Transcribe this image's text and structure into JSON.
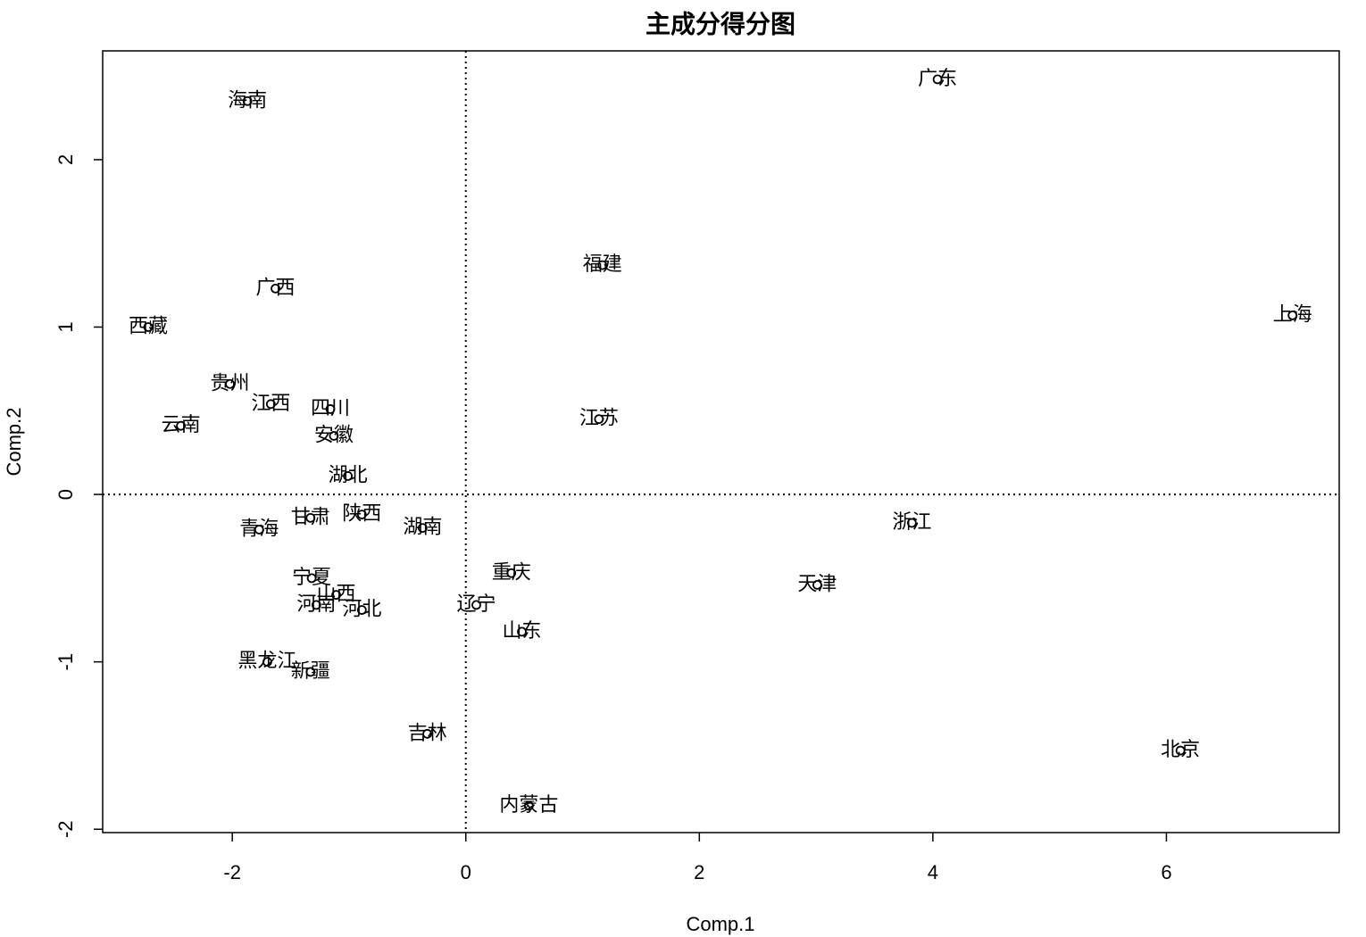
{
  "chart_data": {
    "type": "scatter",
    "title": "主成分得分图",
    "x_label": "Comp.1",
    "y_label": "Comp.2",
    "labels": [
      "广东",
      "海南",
      "福建",
      "上海",
      "广西",
      "西藏",
      "贵州",
      "江西",
      "四川",
      "云南",
      "安徽",
      "江苏",
      "湖北",
      "甘肃",
      "陕西",
      "青海",
      "湖南",
      "浙江",
      "重庆",
      "天津",
      "宁夏",
      "山西",
      "河南",
      "河北",
      "辽宁",
      "山东",
      "黑龙江",
      "新疆",
      "吉林",
      "内蒙古",
      "北京"
    ],
    "x": [
      4.04,
      -1.87,
      1.17,
      7.08,
      -1.63,
      -2.72,
      -2.02,
      -1.67,
      -1.16,
      -2.44,
      -1.13,
      1.14,
      -1.01,
      -1.33,
      -0.89,
      -1.77,
      -0.37,
      3.82,
      0.39,
      3.01,
      -1.32,
      -1.11,
      -1.28,
      -0.89,
      0.09,
      0.48,
      -1.7,
      -1.33,
      -0.33,
      0.54,
      6.12
    ],
    "y": [
      2.48,
      2.35,
      1.37,
      1.07,
      1.23,
      1.0,
      0.66,
      0.54,
      0.51,
      0.41,
      0.35,
      0.45,
      0.11,
      -0.14,
      -0.12,
      -0.21,
      -0.2,
      -0.17,
      -0.47,
      -0.54,
      -0.5,
      -0.6,
      -0.66,
      -0.69,
      -0.66,
      -0.82,
      -1.0,
      -1.06,
      -1.43,
      -1.86,
      -1.53
    ],
    "color": "#000000",
    "xlim": [
      -3.11,
      7.48
    ],
    "ylim": [
      -2.02,
      2.65
    ],
    "xticks": [
      -2,
      0,
      2,
      4,
      6
    ],
    "yticks": [
      -2,
      -1,
      0,
      1,
      2
    ],
    "hlines": [
      0
    ],
    "vlines": [
      0
    ]
  }
}
